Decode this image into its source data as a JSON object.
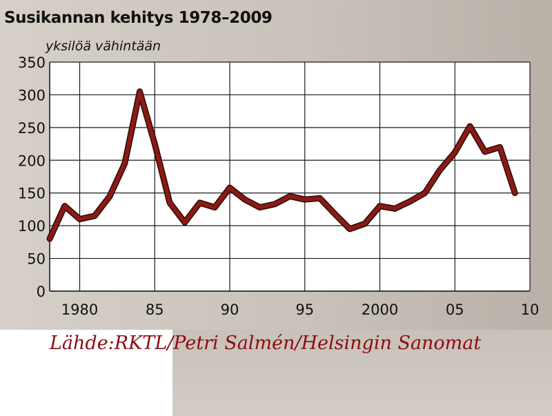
{
  "chart_data": {
    "type": "line",
    "title": "Susikannan kehitys 1978–2009",
    "ylabel": "yksilöä vähintään",
    "xlabel": "",
    "x": [
      1978,
      1979,
      1980,
      1981,
      1982,
      1983,
      1984,
      1985,
      1986,
      1987,
      1988,
      1989,
      1990,
      1991,
      1992,
      1993,
      1994,
      1995,
      1996,
      1997,
      1998,
      1999,
      2000,
      2001,
      2002,
      2003,
      2004,
      2005,
      2006,
      2007,
      2008,
      2009
    ],
    "series": [
      {
        "values": [
          80,
          130,
          110,
          115,
          145,
          195,
          305,
          225,
          135,
          105,
          135,
          128,
          158,
          140,
          128,
          133,
          145,
          140,
          142,
          118,
          95,
          103,
          130,
          126,
          137,
          150,
          185,
          212,
          252,
          213,
          220,
          150
        ]
      }
    ],
    "xlim": [
      1978,
      2010
    ],
    "ylim": [
      0,
      350
    ],
    "y_ticks": [
      0,
      50,
      100,
      150,
      200,
      250,
      300,
      350
    ],
    "y_tick_labels": [
      "0",
      "50",
      "100",
      "150",
      "200",
      "250",
      "300",
      "350"
    ],
    "x_ticks": [
      1980,
      1985,
      1990,
      1995,
      2000,
      2005,
      2010
    ],
    "x_tick_labels": [
      "1980",
      "85",
      "90",
      "95",
      "2000",
      "05",
      "10"
    ],
    "grid": true,
    "colors": {
      "line": "#8c1a14",
      "grid": "#1a1a1a",
      "plot_background": "#ffffff"
    }
  },
  "source": "Lähde:RKTL/Petri Salmén/Helsingin Sanomat"
}
